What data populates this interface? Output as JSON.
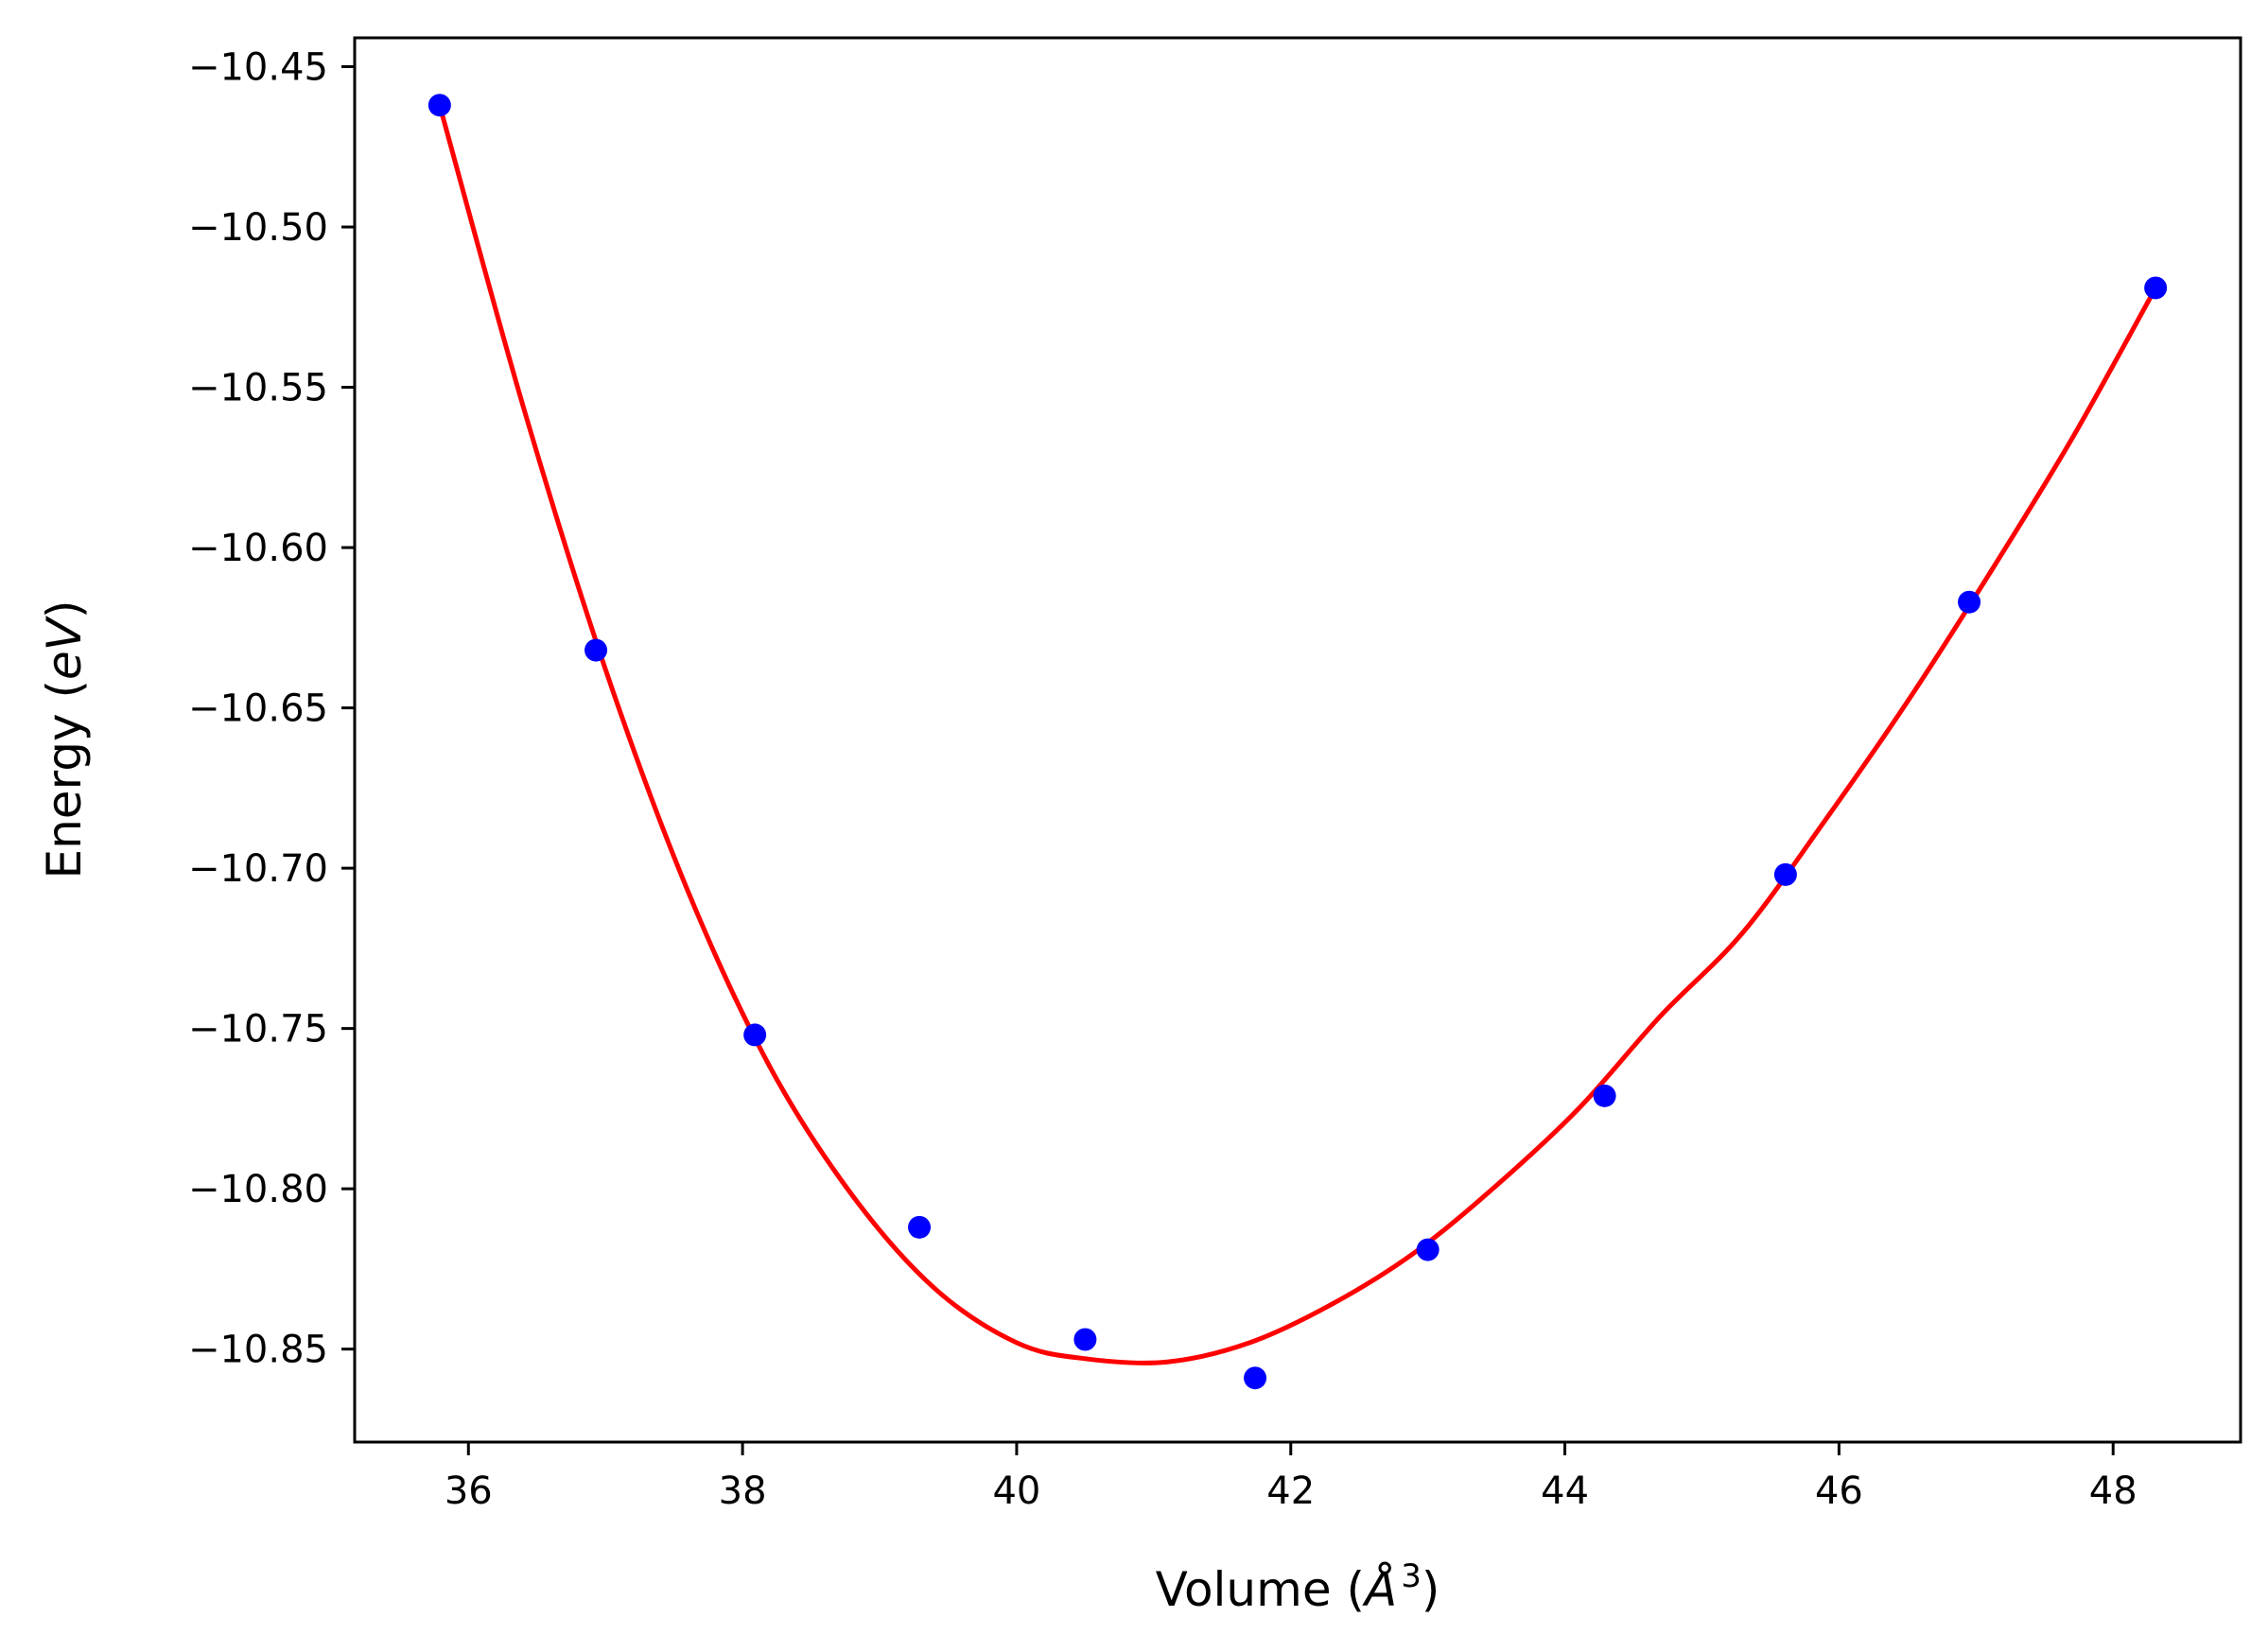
{
  "chart_data": {
    "type": "scatter",
    "title": "",
    "xlabel": {
      "prefix": "Volume (",
      "symbol": "Å",
      "exponent": "3",
      "suffix": ")"
    },
    "ylabel": {
      "prefix": "Energy (",
      "symbol": "eV",
      "suffix": ")"
    },
    "xlim": [
      35.17,
      48.93
    ],
    "ylim": [
      -10.879,
      -10.441
    ],
    "xticks": [
      36,
      38,
      40,
      42,
      44,
      46,
      48
    ],
    "xtick_labels": [
      "36",
      "38",
      "40",
      "42",
      "44",
      "46",
      "48"
    ],
    "yticks": [
      -10.45,
      -10.5,
      -10.55,
      -10.6,
      -10.65,
      -10.7,
      -10.75,
      -10.8,
      -10.85
    ],
    "ytick_labels": [
      "−10.45",
      "−10.50",
      "−10.55",
      "−10.60",
      "−10.65",
      "−10.70",
      "−10.75",
      "−10.80",
      "−10.85"
    ],
    "grid": false,
    "legend": null,
    "series": [
      {
        "kind": "points",
        "color": "#0000ff",
        "x": [
          35.79,
          36.93,
          38.09,
          39.29,
          40.5,
          41.74,
          43.0,
          44.29,
          45.61,
          46.95,
          48.31
        ],
        "y": [
          -10.462,
          -10.632,
          -10.752,
          -10.812,
          -10.847,
          -10.859,
          -10.819,
          -10.771,
          -10.702,
          -10.617,
          -10.519
        ]
      },
      {
        "kind": "fit-curve",
        "color": "#ff0000",
        "x": [
          35.79,
          36.4,
          37.0,
          37.6,
          38.2,
          38.8,
          39.4,
          40.0,
          40.5,
          41.1,
          41.7,
          42.3,
          42.9,
          43.5,
          44.1,
          44.7,
          45.3,
          45.9,
          46.5,
          47.1,
          47.7,
          48.31
        ],
        "y": [
          -10.462,
          -10.556,
          -10.638,
          -10.707,
          -10.762,
          -10.802,
          -10.831,
          -10.848,
          -10.853,
          -10.854,
          -10.848,
          -10.836,
          -10.82,
          -10.799,
          -10.775,
          -10.746,
          -10.72,
          -10.685,
          -10.648,
          -10.608,
          -10.566,
          -10.519
        ]
      }
    ]
  }
}
